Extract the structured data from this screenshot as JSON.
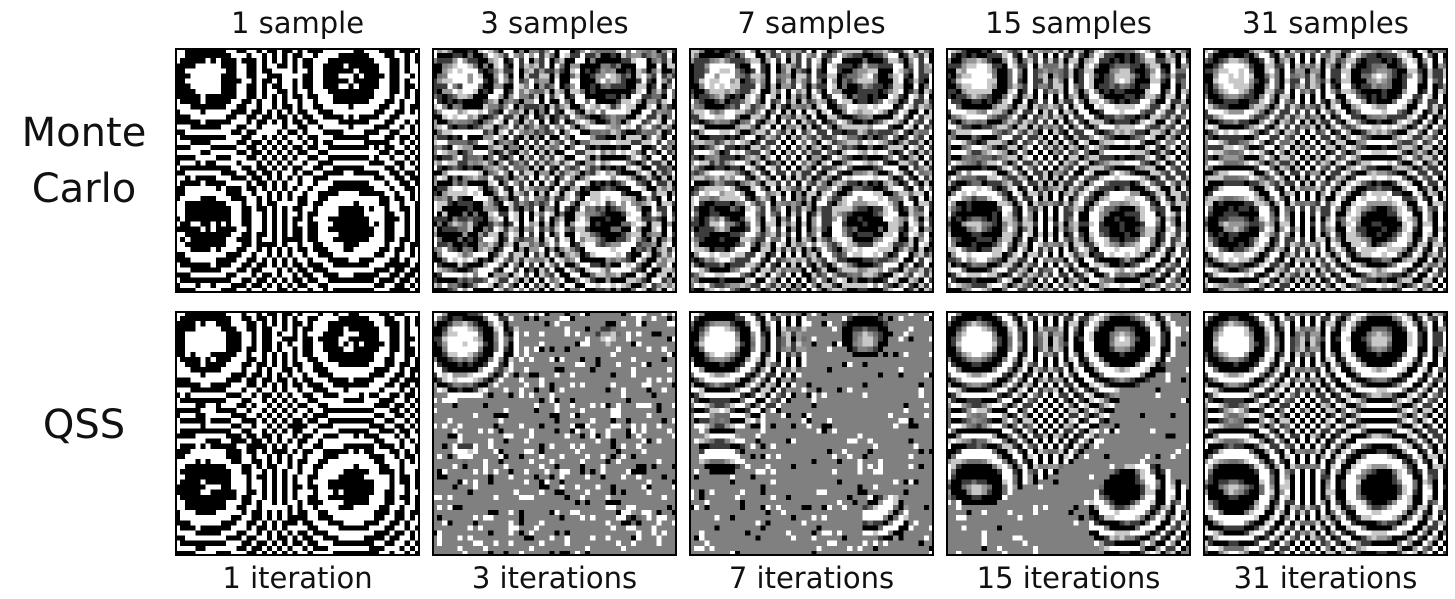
{
  "columns": [
    {
      "top": "1 sample",
      "bottom": "1 iteration"
    },
    {
      "top": "3 samples",
      "bottom": "3 iterations"
    },
    {
      "top": "7 samples",
      "bottom": "7 iterations"
    },
    {
      "top": "15 samples",
      "bottom": "15 iterations"
    },
    {
      "top": "31 samples",
      "bottom": "31 iterations"
    }
  ],
  "rows": [
    "Monte Carlo",
    "QSS"
  ]
}
